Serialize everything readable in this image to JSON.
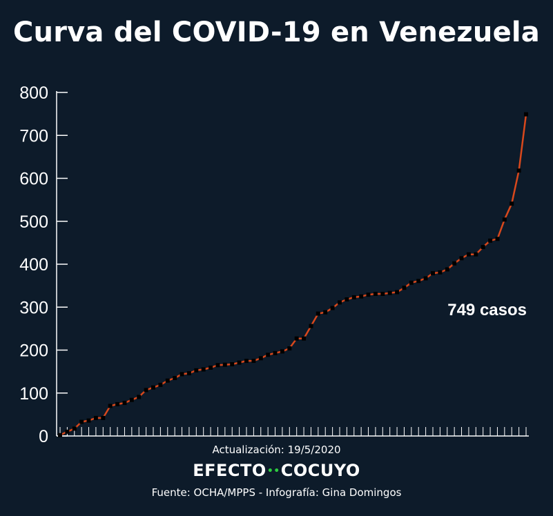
{
  "title": "Curva del COVID-19 en Venezuela",
  "annotation": "749 casos",
  "footer": {
    "update": "Actualización: 19/5/2020",
    "brand_left": "EFECTO",
    "brand_right": "COCUYO",
    "source": "Fuente: OCHA/MPPS - Infografía: Gina Domingos"
  },
  "colors": {
    "background": "#0d1b2a",
    "line": "#d9481c",
    "marker": "#000000",
    "axis": "#ffffff"
  },
  "chart_data": {
    "type": "line",
    "title": "Curva del COVID-19 en Venezuela",
    "xlabel": "",
    "ylabel": "",
    "ylim": [
      0,
      800
    ],
    "yticks": [
      0,
      100,
      200,
      300,
      400,
      500,
      600,
      700,
      800
    ],
    "grid": false,
    "series": [
      {
        "values": [
          2,
          10,
          17,
          33,
          36,
          42,
          42,
          70,
          74,
          77,
          84,
          91,
          107,
          113,
          119,
          129,
          135,
          144,
          146,
          153,
          155,
          159,
          165,
          166,
          167,
          171,
          175,
          175,
          181,
          189,
          193,
          197,
          204,
          227,
          227,
          256,
          285,
          288,
          298,
          311,
          318,
          323,
          325,
          329,
          331,
          331,
          333,
          335,
          345,
          357,
          361,
          367,
          379,
          381,
          388,
          402,
          414,
          423,
          423,
          440,
          455,
          459,
          504,
          541,
          618,
          749
        ]
      }
    ]
  }
}
